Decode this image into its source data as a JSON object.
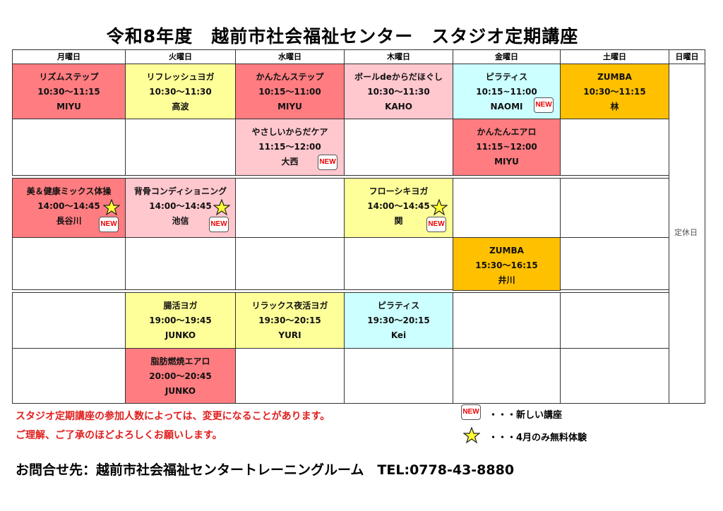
{
  "title": "令和8年度　越前市社会福祉センター　スタジオ定期講座",
  "days": [
    "月曜日",
    "火曜日",
    "水曜日",
    "木曜日",
    "金曜日",
    "土曜日",
    "日曜日"
  ],
  "sunday_note": "定休日",
  "colors": {
    "red": "#ff7c80",
    "yellow": "#ffff99",
    "pink": "#ffc7ce",
    "cyan": "#ccffff",
    "orange": "#ffc000",
    "note_red": "#e0201f"
  },
  "classes": [
    {
      "day": 0,
      "slot": 0,
      "name": "リズムステップ",
      "time": "10:30〜11:15",
      "teacher": "MIYU",
      "color": "red",
      "new": false,
      "star": false
    },
    {
      "day": 1,
      "slot": 0,
      "name": "リフレッシュヨガ",
      "time": "10:30〜11:30",
      "teacher": "高波",
      "color": "yellow",
      "new": false,
      "star": false
    },
    {
      "day": 2,
      "slot": 0,
      "name": "かんたんステップ",
      "time": "10:15〜11:00",
      "teacher": "MIYU",
      "color": "red",
      "new": false,
      "star": false
    },
    {
      "day": 3,
      "slot": 0,
      "name": "ボールdeからだほぐし",
      "time": "10:30〜11:30",
      "teacher": "KAHO",
      "color": "pink",
      "new": false,
      "star": false
    },
    {
      "day": 4,
      "slot": 0,
      "name": "ピラティス",
      "time": "10:15~11:00",
      "teacher": "NAOMI",
      "color": "cyan",
      "new": true,
      "star": false
    },
    {
      "day": 5,
      "slot": 0,
      "name": "ZUMBA",
      "time": "10:30〜11:15",
      "teacher": "林",
      "color": "orange",
      "new": false,
      "star": false
    },
    {
      "day": 2,
      "slot": 1,
      "name": "やさしいからだケア",
      "time": "11:15〜12:00",
      "teacher": "大西",
      "color": "pink",
      "new": true,
      "star": false
    },
    {
      "day": 4,
      "slot": 1,
      "name": "かんたんエアロ",
      "time": "11:15~12:00",
      "teacher": "MIYU",
      "color": "red",
      "new": false,
      "star": false
    },
    {
      "day": 0,
      "slot": 2,
      "name": "美＆健康ミックス体操",
      "time": "14:00〜14:45",
      "teacher": "長谷川",
      "color": "red",
      "new": true,
      "star": true
    },
    {
      "day": 1,
      "slot": 2,
      "name": "背骨コンディショニング",
      "time": "14:00〜14:45",
      "teacher": "池信",
      "color": "pink",
      "new": true,
      "star": true
    },
    {
      "day": 3,
      "slot": 2,
      "name": "フローシキヨガ",
      "time": "14:00〜14:45",
      "teacher": "関",
      "color": "yellow",
      "new": true,
      "star": true
    },
    {
      "day": 4,
      "slot": 3,
      "name": "ZUMBA",
      "time": "15:30〜16:15",
      "teacher": "井川",
      "color": "orange",
      "new": false,
      "star": false
    },
    {
      "day": 1,
      "slot": 4,
      "name": "腸活ヨガ",
      "time": "19:00〜19:45",
      "teacher": "JUNKO",
      "color": "yellow",
      "new": false,
      "star": false
    },
    {
      "day": 2,
      "slot": 4,
      "name": "リラックス夜活ヨガ",
      "time": "19:30〜20:15",
      "teacher": "YURI",
      "color": "yellow",
      "new": false,
      "star": false
    },
    {
      "day": 3,
      "slot": 4,
      "name": "ピラティス",
      "time": "19:30〜20:15",
      "teacher": "Kei",
      "color": "cyan",
      "new": false,
      "star": false
    },
    {
      "day": 1,
      "slot": 5,
      "name": "脂肪燃焼エアロ",
      "time": "20:00〜20:45",
      "teacher": "JUNKO",
      "color": "red",
      "new": false,
      "star": false
    }
  ],
  "badge_label": "NEW",
  "notes": [
    "スタジオ定期講座の参加人数によっては、変更になることがあります。",
    "ご理解、ご了承のほどよろしくお願いします。"
  ],
  "legend": {
    "new_text": "・・・新しい講座",
    "star_text": "・・・4月のみ無料体験"
  },
  "contact": "お問合せ先：越前市社会福祉センタートレーニングルーム　TEL:0778-43-8880"
}
